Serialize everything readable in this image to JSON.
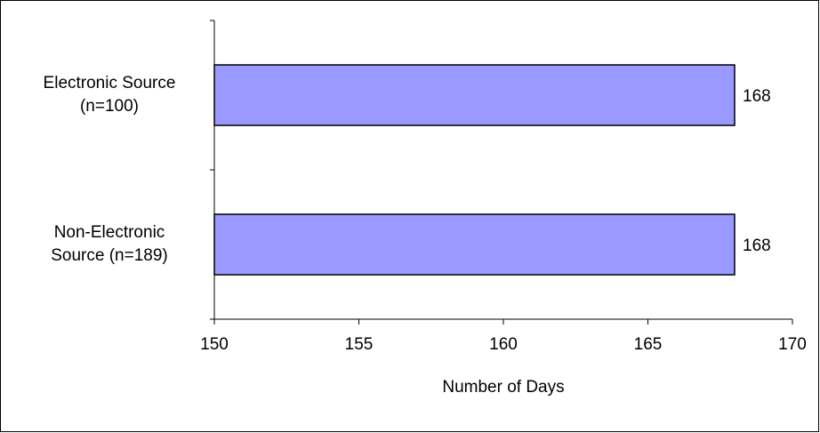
{
  "chart_data": {
    "type": "bar",
    "orientation": "horizontal",
    "categories": [
      "Electronic Source (n=100)",
      "Non-Electronic Source (n=189)"
    ],
    "category_label_lines": [
      [
        "Electronic Source",
        "(n=100)"
      ],
      [
        "Non-Electronic",
        "Source (n=189)"
      ]
    ],
    "values": [
      168,
      168
    ],
    "data_labels": [
      "168",
      "168"
    ],
    "xlabel": "Number of Days",
    "ylabel": "",
    "xlim": [
      150,
      170
    ],
    "xticks": [
      150,
      155,
      160,
      165,
      170
    ],
    "xtick_labels": [
      "150",
      "155",
      "160",
      "165",
      "170"
    ],
    "grid": false,
    "legend": "none",
    "bar_color": "#9999ff",
    "bar_edge_color": "#000000"
  }
}
